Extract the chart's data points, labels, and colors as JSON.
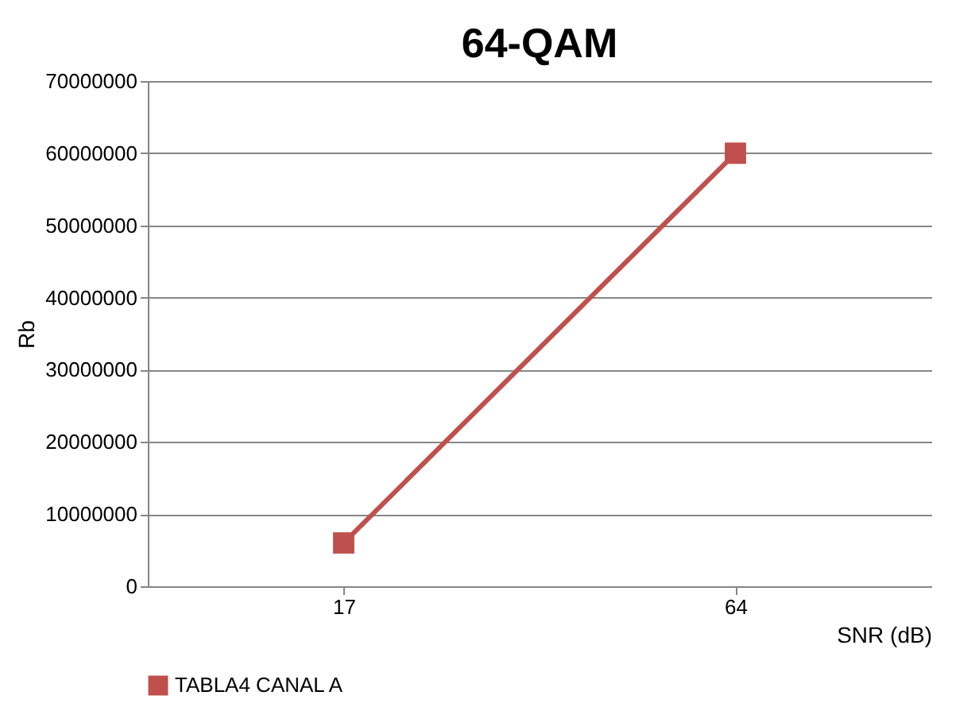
{
  "chart_data": {
    "type": "line",
    "title": "64-QAM",
    "xlabel": "SNR (dB)",
    "ylabel": "Rb",
    "categories": [
      "17",
      "64"
    ],
    "series": [
      {
        "name": "TABLA4 CANAL A",
        "color": "#c0504d",
        "values": [
          6000000,
          60000000
        ]
      }
    ],
    "ylim": [
      0,
      70000000
    ],
    "yticks": [
      0,
      10000000,
      20000000,
      30000000,
      40000000,
      50000000,
      60000000,
      70000000
    ],
    "grid": "y",
    "legend": "bottom",
    "marker": "square",
    "line_style": "solid"
  }
}
